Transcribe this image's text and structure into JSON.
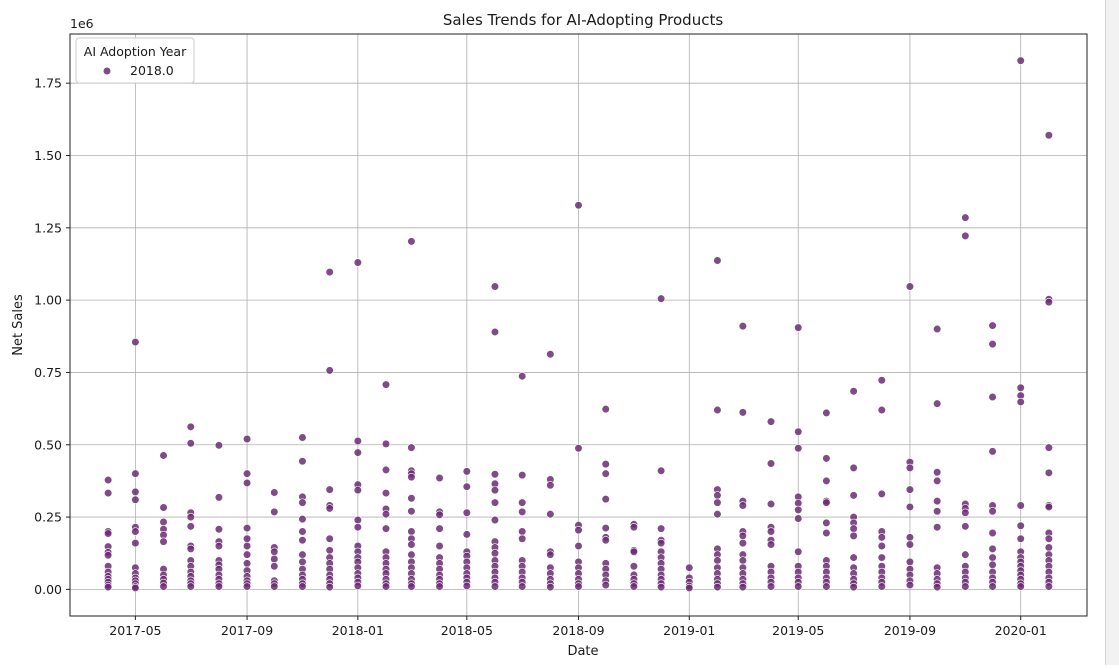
{
  "chart_data": {
    "type": "scatter",
    "title": "Sales Trends for AI-Adopting Products",
    "xlabel": "Date",
    "ylabel": "Net Sales",
    "y_offset_text": "1e6",
    "x_tick_labels": [
      "2017-05",
      "2017-09",
      "2018-01",
      "2018-05",
      "2018-09",
      "2019-01",
      "2019-05",
      "2019-09",
      "2020-01"
    ],
    "y_tick_labels": [
      "0.00",
      "0.25",
      "0.50",
      "0.75",
      "1.00",
      "1.25",
      "1.50",
      "1.75"
    ],
    "y_ticks": [
      0,
      250000,
      500000,
      750000,
      1000000,
      1250000,
      1500000,
      1750000
    ],
    "xlim": [
      "2017-02-18",
      "2020-03-14"
    ],
    "ylim": [
      -92000,
      1920000
    ],
    "grid": true,
    "legend": {
      "title": "AI Adoption Year",
      "placement": "top-left",
      "entries": [
        "2018.0"
      ]
    },
    "colors": {
      "point": "#6b2a73",
      "grid": "#b0b0b0"
    },
    "series": [
      {
        "name": "2018.0",
        "points": [
          {
            "date": "2017-04-01",
            "values": [
              378000,
              333000,
              200000,
              193000,
              148000,
              128000,
              118000,
              80000,
              60000,
              45000,
              35000,
              25000,
              15000,
              8000
            ]
          },
          {
            "date": "2017-05-01",
            "values": [
              855000,
              400000,
              337000,
              310000,
              215000,
              200000,
              160000,
              75000,
              55000,
              40000,
              30000,
              20000,
              10000,
              5000
            ]
          },
          {
            "date": "2017-06-01",
            "values": [
              463000,
              283000,
              233000,
              208000,
              188000,
              165000,
              70000,
              50000,
              35000,
              22000,
              10000
            ]
          },
          {
            "date": "2017-07-01",
            "values": [
              562000,
              505000,
              265000,
              250000,
              218000,
              150000,
              140000,
              100000,
              80000,
              60000,
              45000,
              30000,
              20000,
              10000
            ]
          },
          {
            "date": "2017-08-01",
            "values": [
              498000,
              318000,
              208000,
              165000,
              150000,
              100000,
              85000,
              70000,
              50000,
              35000,
              20000,
              10000
            ]
          },
          {
            "date": "2017-09-01",
            "values": [
              520000,
              400000,
              368000,
              212000,
              175000,
              150000,
              120000,
              90000,
              65000,
              45000,
              30000,
              20000,
              10000
            ]
          },
          {
            "date": "2017-10-01",
            "values": [
              335000,
              268000,
              145000,
              130000,
              105000,
              80000,
              30000,
              20000,
              10000
            ]
          },
          {
            "date": "2017-11-01",
            "values": [
              525000,
              443000,
              320000,
              300000,
              243000,
              200000,
              170000,
              120000,
              95000,
              70000,
              50000,
              35000,
              20000,
              10000
            ]
          },
          {
            "date": "2017-12-01",
            "values": [
              1097000,
              757000,
              345000,
              290000,
              280000,
              175000,
              135000,
              110000,
              90000,
              70000,
              50000,
              35000,
              20000,
              8000
            ]
          },
          {
            "date": "2018-01-01",
            "values": [
              1130000,
              513000,
              473000,
              362000,
              343000,
              240000,
              215000,
              150000,
              130000,
              110000,
              95000,
              75000,
              55000,
              40000,
              25000,
              12000
            ]
          },
          {
            "date": "2018-02-01",
            "values": [
              708000,
              503000,
              413000,
              333000,
              278000,
              260000,
              210000,
              130000,
              110000,
              90000,
              70000,
              55000,
              35000,
              20000,
              10000
            ]
          },
          {
            "date": "2018-03-01",
            "values": [
              1203000,
              490000,
              410000,
              400000,
              388000,
              315000,
              270000,
              200000,
              175000,
              155000,
              120000,
              95000,
              75000,
              55000,
              35000,
              20000,
              10000
            ]
          },
          {
            "date": "2018-04-01",
            "values": [
              385000,
              268000,
              258000,
              210000,
              150000,
              110000,
              90000,
              70000,
              50000,
              35000,
              20000,
              10000
            ]
          },
          {
            "date": "2018-05-01",
            "values": [
              408000,
              355000,
              265000,
              190000,
              130000,
              115000,
              95000,
              75000,
              55000,
              40000,
              25000,
              12000
            ]
          },
          {
            "date": "2018-06-01",
            "values": [
              1047000,
              890000,
              398000,
              365000,
              343000,
              300000,
              240000,
              165000,
              145000,
              125000,
              100000,
              80000,
              60000,
              40000,
              25000,
              10000
            ]
          },
          {
            "date": "2018-07-01",
            "values": [
              737000,
              395000,
              300000,
              268000,
              200000,
              175000,
              100000,
              80000,
              60000,
              40000,
              25000,
              10000
            ]
          },
          {
            "date": "2018-08-01",
            "values": [
              813000,
              380000,
              360000,
              260000,
              130000,
              120000,
              75000,
              55000,
              35000,
              20000,
              8000
            ]
          },
          {
            "date": "2018-09-01",
            "values": [
              1328000,
              488000,
              222000,
              205000,
              150000,
              95000,
              75000,
              55000,
              35000,
              20000,
              10000
            ]
          },
          {
            "date": "2018-10-01",
            "values": [
              623000,
              433000,
              400000,
              312000,
              212000,
              180000,
              170000,
              90000,
              70000,
              50000,
              30000,
              15000
            ]
          },
          {
            "date": "2018-11-01",
            "values": [
              225000,
              215000,
              135000,
              130000,
              80000,
              50000,
              35000,
              20000,
              10000
            ]
          },
          {
            "date": "2018-12-01",
            "values": [
              1005000,
              410000,
              210000,
              170000,
              160000,
              130000,
              110000,
              90000,
              70000,
              50000,
              35000,
              20000,
              8000
            ]
          },
          {
            "date": "2019-01-01",
            "values": [
              75000,
              40000,
              25000,
              12000,
              5000
            ]
          },
          {
            "date": "2019-02-01",
            "values": [
              1137000,
              620000,
              345000,
              325000,
              300000,
              260000,
              140000,
              120000,
              100000,
              75000,
              55000,
              35000,
              20000,
              8000
            ]
          },
          {
            "date": "2019-03-01",
            "values": [
              910000,
              612000,
              305000,
              290000,
              200000,
              185000,
              160000,
              120000,
              100000,
              75000,
              55000,
              35000,
              20000,
              8000
            ]
          },
          {
            "date": "2019-04-01",
            "values": [
              580000,
              435000,
              295000,
              215000,
              200000,
              170000,
              155000,
              80000,
              60000,
              40000,
              25000,
              10000
            ]
          },
          {
            "date": "2019-05-01",
            "values": [
              905000,
              545000,
              488000,
              320000,
              298000,
              275000,
              245000,
              130000,
              80000,
              60000,
              40000,
              25000,
              10000
            ]
          },
          {
            "date": "2019-06-01",
            "values": [
              610000,
              453000,
              375000,
              305000,
              300000,
              230000,
              195000,
              100000,
              80000,
              60000,
              40000,
              25000,
              10000
            ]
          },
          {
            "date": "2019-07-01",
            "values": [
              685000,
              420000,
              325000,
              250000,
              230000,
              210000,
              185000,
              110000,
              75000,
              55000,
              35000,
              20000,
              8000
            ]
          },
          {
            "date": "2019-08-01",
            "values": [
              723000,
              620000,
              330000,
              200000,
              180000,
              150000,
              110000,
              80000,
              60000,
              40000,
              25000,
              10000
            ]
          },
          {
            "date": "2019-09-01",
            "values": [
              1047000,
              440000,
              420000,
              345000,
              285000,
              180000,
              155000,
              95000,
              70000,
              50000,
              30000,
              15000
            ]
          },
          {
            "date": "2019-10-01",
            "values": [
              900000,
              642000,
              405000,
              375000,
              305000,
              270000,
              215000,
              75000,
              55000,
              35000,
              20000,
              8000
            ]
          },
          {
            "date": "2019-11-01",
            "values": [
              1285000,
              1222000,
              295000,
              280000,
              265000,
              218000,
              120000,
              80000,
              60000,
              40000,
              25000,
              10000
            ]
          },
          {
            "date": "2019-12-01",
            "values": [
              912000,
              848000,
              665000,
              477000,
              290000,
              270000,
              195000,
              140000,
              110000,
              85000,
              60000,
              40000,
              25000,
              10000
            ]
          },
          {
            "date": "2020-01-01",
            "values": [
              1828000,
              697000,
              670000,
              648000,
              290000,
              220000,
              175000,
              130000,
              110000,
              95000,
              80000,
              65000,
              50000,
              35000,
              20000,
              10000
            ]
          },
          {
            "date": "2020-02-01",
            "values": [
              1570000,
              1003000,
              993000,
              490000,
              403000,
              290000,
              285000,
              195000,
              175000,
              145000,
              120000,
              100000,
              80000,
              60000,
              40000,
              25000,
              10000
            ]
          }
        ]
      }
    ]
  }
}
